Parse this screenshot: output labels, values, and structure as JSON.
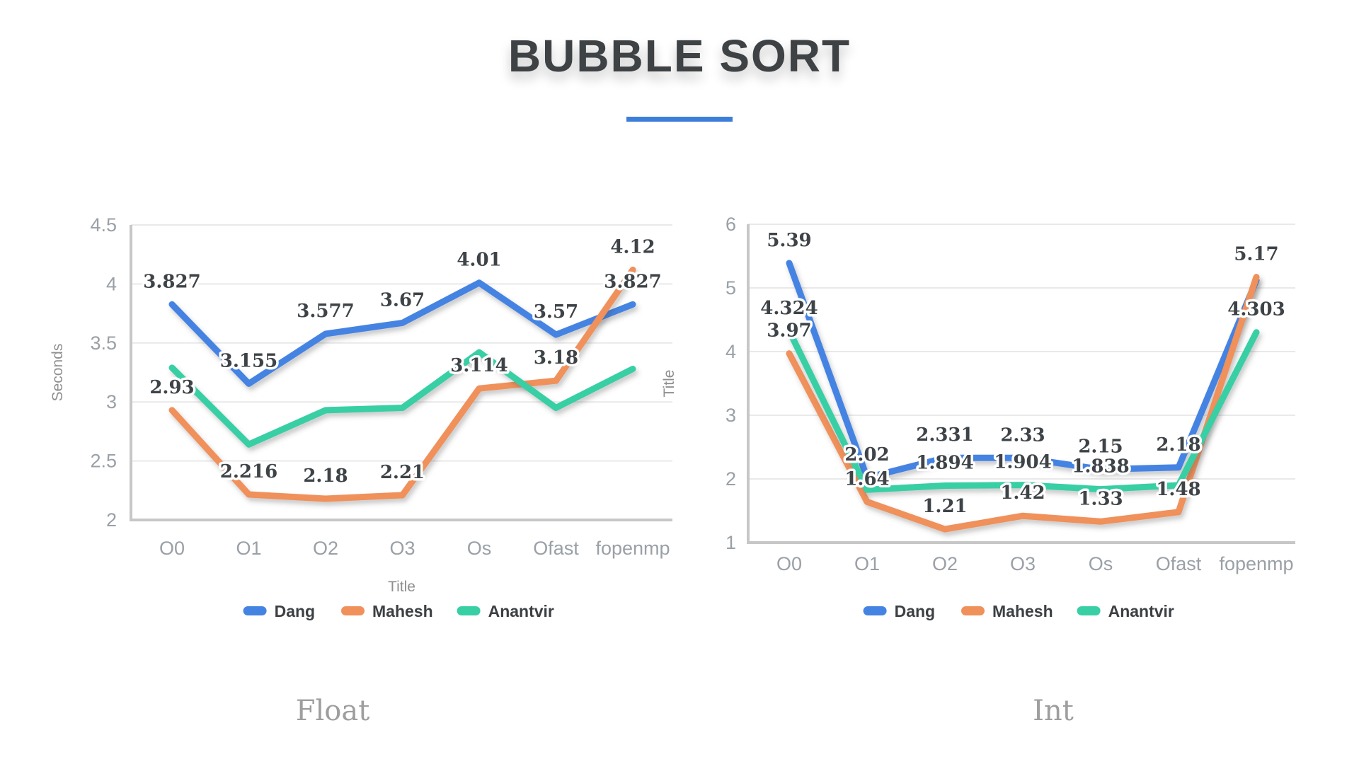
{
  "page": {
    "title": "BUBBLE SORT",
    "accent_color": "#3e7edb",
    "background": "#ffffff"
  },
  "legend": {
    "items": [
      {
        "label": "Dang",
        "color": "#4583e3"
      },
      {
        "label": "Mahesh",
        "color": "#f0905a"
      },
      {
        "label": "Anantvir",
        "color": "#38cfa5"
      }
    ]
  },
  "chart_data": [
    {
      "type": "line",
      "caption": "Float",
      "title": "",
      "xlabel": "Title",
      "ylabel": "Seconds",
      "ylim": [
        2,
        4.5
      ],
      "yticks": [
        2,
        2.5,
        3,
        3.5,
        4,
        4.5
      ],
      "grid": true,
      "legend_position": "bottom",
      "categories": [
        "O0",
        "O1",
        "O2",
        "O3",
        "Os",
        "Ofast",
        "fopenmp"
      ],
      "series": [
        {
          "name": "Dang",
          "color": "#4583e3",
          "values": [
            3.827,
            3.155,
            3.577,
            3.67,
            4.01,
            3.57,
            3.827
          ],
          "labels": [
            "3.827",
            "3.155",
            "3.577",
            "3.67",
            "4.01",
            "3.57",
            "3.827"
          ]
        },
        {
          "name": "Mahesh",
          "color": "#f0905a",
          "values": [
            2.93,
            2.216,
            2.18,
            2.21,
            3.114,
            3.18,
            4.12
          ],
          "labels": [
            "2.93",
            "2.216",
            "2.18",
            "2.21",
            "3.114",
            "3.18",
            "4.12"
          ]
        },
        {
          "name": "Anantvir",
          "color": "#38cfa5",
          "values": [
            3.29,
            2.64,
            2.93,
            2.95,
            3.42,
            2.95,
            3.28
          ],
          "labels": [
            null,
            null,
            null,
            null,
            null,
            null,
            null
          ],
          "values_estimated_from_pixels": true
        }
      ]
    },
    {
      "type": "line",
      "caption": "Int",
      "title": "",
      "xlabel": "",
      "ylabel": "Title",
      "ylim": [
        1,
        6
      ],
      "yticks": [
        1,
        2,
        3,
        4,
        5,
        6
      ],
      "grid": true,
      "legend_position": "bottom",
      "categories": [
        "O0",
        "O1",
        "O2",
        "O3",
        "Os",
        "Ofast",
        "fopenmp"
      ],
      "series": [
        {
          "name": "Dang",
          "color": "#4583e3",
          "values": [
            5.39,
            2.02,
            2.331,
            2.33,
            2.15,
            2.18,
            5.12
          ],
          "labels": [
            "5.39",
            "2.02",
            "2.331",
            "2.33",
            "2.15",
            "2.18",
            null
          ]
        },
        {
          "name": "Mahesh",
          "color": "#f0905a",
          "values": [
            3.97,
            1.64,
            1.21,
            1.42,
            1.33,
            1.48,
            5.17
          ],
          "labels": [
            "3.97",
            "1.64",
            "1.21",
            "1.42",
            "1.33",
            "1.48",
            "5.17"
          ]
        },
        {
          "name": "Anantvir",
          "color": "#38cfa5",
          "values": [
            4.324,
            1.83,
            1.894,
            1.904,
            1.838,
            1.9,
            4.303
          ],
          "labels": [
            "4.324",
            null,
            "1.894",
            "1.904",
            "1.838",
            null,
            "4.303"
          ]
        }
      ]
    }
  ]
}
